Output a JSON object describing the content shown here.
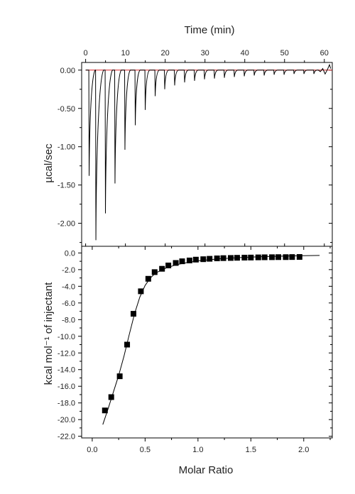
{
  "chart_data": [
    {
      "type": "line",
      "panel": "top",
      "title": "",
      "xlabel": "Time (min)",
      "ylabel": "µcal/sec",
      "xlim": [
        -1,
        62
      ],
      "ylim": [
        -2.3,
        0.1
      ],
      "x_ticks": [
        "0",
        "10",
        "20",
        "30",
        "40",
        "50",
        "60"
      ],
      "y_ticks": [
        "0.00",
        "-0.50",
        "-1.00",
        "-1.50",
        "-2.00"
      ],
      "baseline": 0.0,
      "baseline_color": "#d62728",
      "trace_color": "#000000",
      "injection_times": [
        0.8,
        2.5,
        4.9,
        7.3,
        9.8,
        12.4,
        14.9,
        17.4,
        19.8,
        22.3,
        24.8,
        27.3,
        29.8,
        32.3,
        34.8,
        37.3,
        39.8,
        42.3,
        44.8,
        47.3,
        49.8,
        52.3,
        54.8,
        57.3
      ],
      "peak_minima": [
        -1.38,
        -2.22,
        -1.87,
        -1.48,
        -1.04,
        -0.72,
        -0.52,
        -0.34,
        -0.25,
        -0.2,
        -0.16,
        -0.14,
        -0.12,
        -0.11,
        -0.1,
        -0.09,
        -0.08,
        -0.07,
        -0.07,
        -0.06,
        -0.06,
        -0.05,
        -0.05,
        -0.05
      ]
    },
    {
      "type": "scatter",
      "panel": "bottom",
      "title": "",
      "xlabel": "Molar Ratio",
      "ylabel": "kcal mol⁻¹ of injectant",
      "xlim": [
        -0.1,
        2.27
      ],
      "ylim": [
        -22.2,
        0.8
      ],
      "x_ticks": [
        "0.0",
        "0.5",
        "1.0",
        "1.5",
        "2.0"
      ],
      "y_ticks": [
        "0.0",
        "-2.0",
        "-4.0",
        "-6.0",
        "-8.0",
        "-10.0",
        "-12.0",
        "-14.0",
        "-16.0",
        "-18.0",
        "-20.0",
        "-22.0"
      ],
      "marker": "filled-square",
      "marker_color": "#000000",
      "series": [
        {
          "x": [
            0.12,
            0.18,
            0.26,
            0.33,
            0.39,
            0.46,
            0.53,
            0.59,
            0.66,
            0.72,
            0.79,
            0.85,
            0.92,
            0.98,
            1.05,
            1.11,
            1.18,
            1.24,
            1.31,
            1.37,
            1.44,
            1.5,
            1.57,
            1.63,
            1.7,
            1.76,
            1.83,
            1.89,
            1.96
          ],
          "y": [
            -18.9,
            -17.3,
            -14.8,
            -11.0,
            -7.3,
            -4.6,
            -3.1,
            -2.3,
            -1.9,
            -1.5,
            -1.2,
            -1.0,
            -0.9,
            -0.8,
            -0.75,
            -0.7,
            -0.65,
            -0.62,
            -0.6,
            -0.58,
            -0.56,
            -0.55,
            -0.53,
            -0.52,
            -0.51,
            -0.5,
            -0.5,
            -0.49,
            -0.48
          ]
        }
      ],
      "fit_line": {
        "color": "#000000",
        "x": [
          0.1,
          0.15,
          0.2,
          0.25,
          0.3,
          0.35,
          0.4,
          0.45,
          0.5,
          0.55,
          0.6,
          0.7,
          0.8,
          0.9,
          1.0,
          1.2,
          1.4,
          1.6,
          1.8,
          2.0,
          2.15
        ],
        "y": [
          -20.6,
          -18.7,
          -16.7,
          -14.7,
          -12.4,
          -9.8,
          -7.3,
          -5.3,
          -3.9,
          -3.0,
          -2.4,
          -1.8,
          -1.4,
          -1.15,
          -0.95,
          -0.7,
          -0.55,
          -0.45,
          -0.38,
          -0.33,
          -0.3
        ]
      }
    }
  ]
}
